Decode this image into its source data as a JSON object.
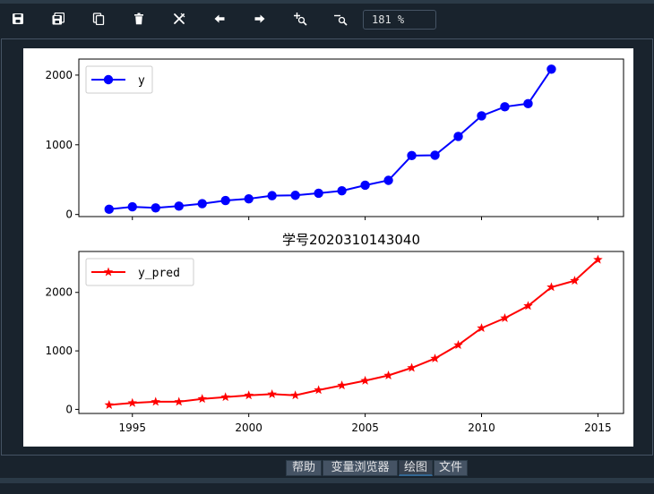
{
  "toolbar": {
    "buttons": [
      {
        "name": "save-icon",
        "tooltip": ""
      },
      {
        "name": "save-all-icon",
        "tooltip": ""
      },
      {
        "name": "copy-icon",
        "tooltip": ""
      },
      {
        "name": "delete-icon",
        "tooltip": ""
      },
      {
        "name": "close-all-icon",
        "tooltip": ""
      },
      {
        "name": "arrow-left-icon",
        "tooltip": ""
      },
      {
        "name": "arrow-right-icon",
        "tooltip": ""
      },
      {
        "name": "zoom-in-icon",
        "tooltip": ""
      },
      {
        "name": "zoom-out-icon",
        "tooltip": ""
      }
    ],
    "zoom": "181 %"
  },
  "tabs": [
    {
      "label": "帮助",
      "active": false
    },
    {
      "label": "变量浏览器",
      "active": false
    },
    {
      "label": "绘图",
      "active": true
    },
    {
      "label": "文件",
      "active": false
    }
  ],
  "colors": {
    "background": "#19232d",
    "border": "#455364",
    "series_top": "#0000ff",
    "series_bottom": "#ff0000"
  },
  "chart_data": [
    {
      "type": "line",
      "title": "",
      "x": [
        1994,
        1995,
        1996,
        1997,
        1998,
        1999,
        2000,
        2001,
        2002,
        2003,
        2004,
        2005,
        2006,
        2007,
        2008,
        2009,
        2010,
        2011,
        2012,
        2013
      ],
      "series": [
        {
          "name": "y",
          "marker": "circle",
          "color": "#0000ff",
          "values": [
            75,
            110,
            95,
            120,
            155,
            200,
            225,
            270,
            275,
            305,
            340,
            420,
            490,
            845,
            850,
            1120,
            1415,
            1545,
            1590,
            2085
          ]
        }
      ],
      "xlim": [
        1992.7,
        2016.1
      ],
      "ylim": [
        -30,
        2230
      ],
      "yticks": [
        0,
        1000,
        2000
      ],
      "xticks": [
        1995,
        2000,
        2005,
        2010,
        2015
      ],
      "show_xtick_labels": false,
      "legend": "top-left",
      "grid": false
    },
    {
      "type": "line",
      "title": "学号2020310143040",
      "x": [
        1994,
        1995,
        1996,
        1997,
        1998,
        1999,
        2000,
        2001,
        2002,
        2003,
        2004,
        2005,
        2006,
        2007,
        2008,
        2009,
        2010,
        2011,
        2012,
        2013,
        2014,
        2015
      ],
      "series": [
        {
          "name": "y_pred",
          "marker": "star",
          "color": "#ff0000",
          "values": [
            75,
            110,
            130,
            130,
            180,
            210,
            240,
            260,
            240,
            330,
            410,
            490,
            580,
            710,
            870,
            1100,
            1390,
            1560,
            1770,
            2090,
            2200,
            2560
          ]
        }
      ],
      "xlim": [
        1992.7,
        2016.1
      ],
      "ylim": [
        -70,
        2700
      ],
      "yticks": [
        0,
        1000,
        2000
      ],
      "xticks": [
        1995,
        2000,
        2005,
        2010,
        2015
      ],
      "show_xtick_labels": true,
      "legend": "top-left",
      "grid": false
    }
  ]
}
